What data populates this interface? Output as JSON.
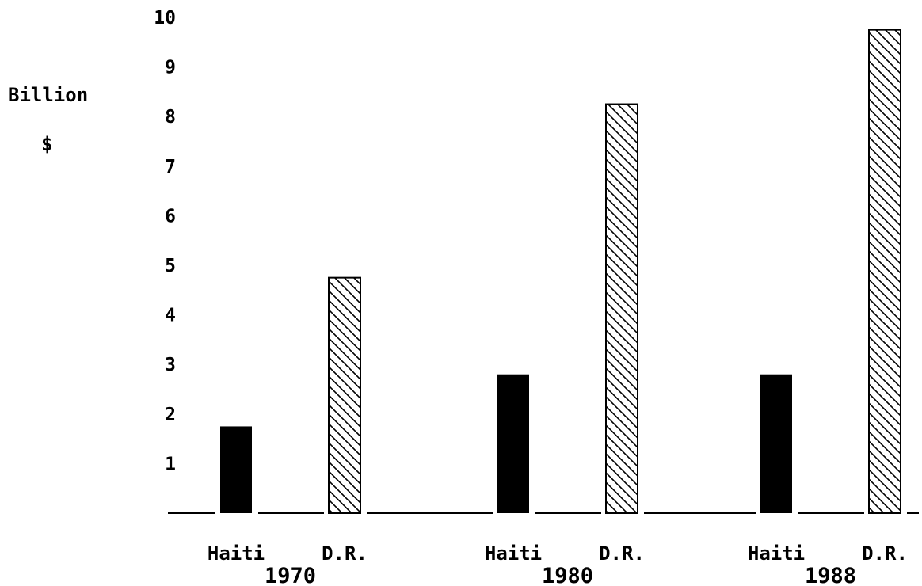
{
  "chart_data": {
    "type": "bar",
    "title": "",
    "ylabel_line1": "Billion",
    "ylabel_line2": "$",
    "ylim": [
      0,
      10
    ],
    "yticks": [
      "1",
      "2",
      "3",
      "4",
      "5",
      "6",
      "7",
      "8",
      "9",
      "10"
    ],
    "groups": [
      {
        "label": "1970",
        "bars": [
          {
            "category": "Haiti",
            "value": 1.75,
            "fill": "solid"
          },
          {
            "category": "D.R.",
            "value": 4.75,
            "fill": "hatched"
          }
        ]
      },
      {
        "label": "1980",
        "bars": [
          {
            "category": "Haiti",
            "value": 2.8,
            "fill": "solid"
          },
          {
            "category": "D.R.",
            "value": 8.25,
            "fill": "hatched"
          }
        ]
      },
      {
        "label": "1988",
        "bars": [
          {
            "category": "Haiti",
            "value": 2.8,
            "fill": "solid"
          },
          {
            "category": "D.R.",
            "value": 9.75,
            "fill": "hatched"
          }
        ]
      }
    ],
    "grid": false,
    "colors": {
      "solid": "#000000",
      "hatched_stroke": "#000000",
      "background": "#ffffff"
    }
  }
}
